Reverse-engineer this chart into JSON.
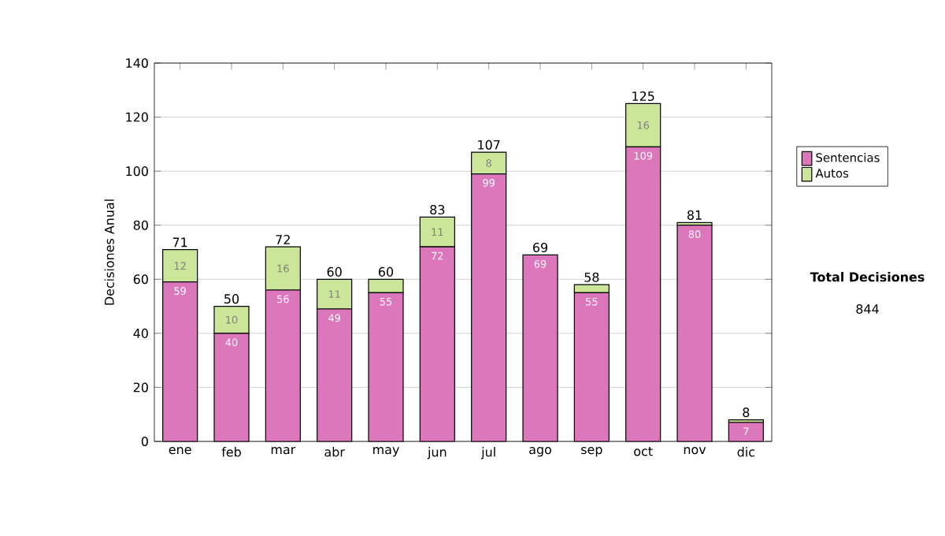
{
  "chart_data": {
    "type": "bar",
    "stacked": true,
    "ylabel": "Decisiones Anual",
    "categories": [
      "ene",
      "feb",
      "mar",
      "abr",
      "may",
      "jun",
      "jul",
      "ago",
      "sep",
      "oct",
      "nov",
      "dic"
    ],
    "series": [
      {
        "name": "Sentencias",
        "color": "#dd77bb",
        "values": [
          59,
          40,
          56,
          49,
          55,
          72,
          99,
          69,
          55,
          109,
          80,
          7
        ],
        "value_labels": [
          "59",
          "40",
          "56",
          "49",
          "55",
          "72",
          "99",
          "69",
          "55",
          "109",
          "80",
          "7"
        ]
      },
      {
        "name": "Autos",
        "color": "#cce699",
        "values": [
          12,
          10,
          16,
          11,
          5,
          11,
          8,
          0,
          3,
          16,
          1,
          1
        ],
        "value_labels": [
          "12",
          "10",
          "16",
          "11",
          null,
          "11",
          "8",
          null,
          null,
          "16",
          null,
          null
        ]
      }
    ],
    "totals": [
      "71",
      "50",
      "72",
      "60",
      "60",
      "83",
      "107",
      "69",
      "58",
      "125",
      "81",
      "8"
    ],
    "ylim": [
      0,
      140
    ],
    "yticks": [
      0,
      20,
      40,
      60,
      80,
      100,
      120,
      140
    ],
    "grid": "y",
    "legend": "right",
    "annotations": [
      "Total Decisiones",
      "844"
    ]
  }
}
